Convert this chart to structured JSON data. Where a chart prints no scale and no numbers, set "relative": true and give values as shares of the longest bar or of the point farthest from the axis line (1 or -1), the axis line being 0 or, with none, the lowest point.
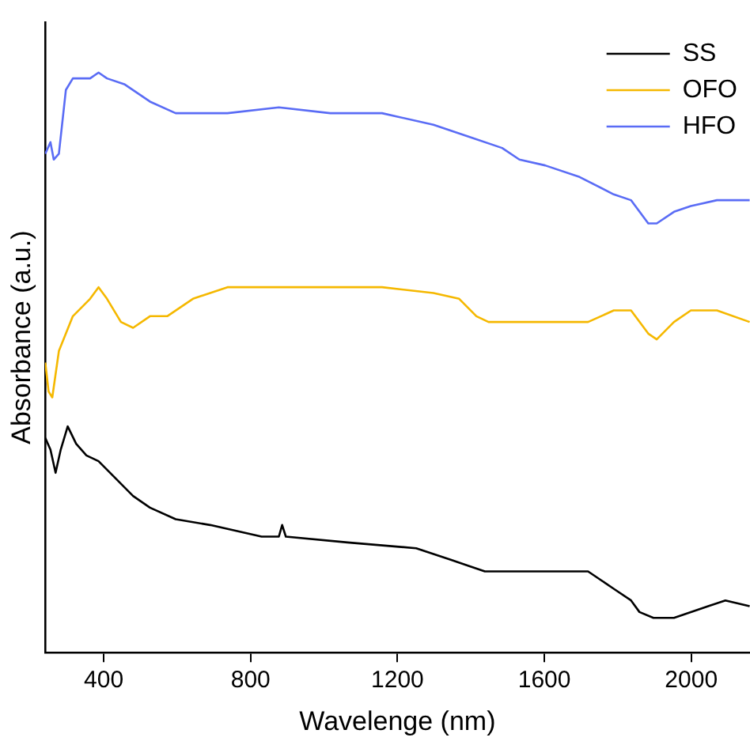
{
  "chart_data": {
    "type": "line",
    "xlabel": "Wavelenge (nm)",
    "ylabel": "Absorbance (a.u.)",
    "relative": true,
    "xlim": [
      240,
      2160
    ],
    "xticks": [
      400,
      800,
      1200,
      1600,
      2000
    ],
    "legend": "top right",
    "grid": false,
    "marker": "none",
    "line_style": "solid",
    "series": [
      {
        "name": "SS",
        "color": "#000000",
        "x": [
          241,
          255,
          269,
          283,
          302,
          325,
          353,
          386,
          433,
          480,
          526,
          596,
          690,
          830,
          877,
          886,
          896,
          1064,
          1251,
          1345,
          1392,
          1438,
          1532,
          1719,
          1789,
          1836,
          1859,
          1897,
          1953,
          2046,
          2093,
          2159
        ],
        "values": [
          0.37,
          0.35,
          0.31,
          0.35,
          0.39,
          0.36,
          0.34,
          0.33,
          0.3,
          0.27,
          0.25,
          0.23,
          0.22,
          0.2,
          0.2,
          0.22,
          0.2,
          0.19,
          0.18,
          0.16,
          0.15,
          0.14,
          0.14,
          0.14,
          0.11,
          0.09,
          0.07,
          0.06,
          0.06,
          0.08,
          0.09,
          0.08
        ]
      },
      {
        "name": "OFO",
        "color": "#f5b800",
        "x": [
          241,
          250,
          260,
          278,
          316,
          363,
          386,
          409,
          447,
          480,
          526,
          573,
          643,
          737,
          830,
          971,
          1158,
          1298,
          1368,
          1415,
          1448,
          1719,
          1789,
          1836,
          1883,
          1906,
          1953,
          1999,
          2070,
          2159
        ],
        "values": [
          0.5,
          0.45,
          0.44,
          0.52,
          0.58,
          0.61,
          0.63,
          0.61,
          0.57,
          0.56,
          0.58,
          0.58,
          0.61,
          0.63,
          0.63,
          0.63,
          0.63,
          0.62,
          0.61,
          0.58,
          0.57,
          0.57,
          0.59,
          0.59,
          0.55,
          0.54,
          0.57,
          0.59,
          0.59,
          0.57
        ]
      },
      {
        "name": "HFO",
        "color": "#5a6cf5",
        "x": [
          241,
          255,
          264,
          278,
          297,
          316,
          363,
          386,
          409,
          456,
          526,
          596,
          643,
          737,
          877,
          1017,
          1158,
          1298,
          1392,
          1485,
          1532,
          1602,
          1696,
          1789,
          1836,
          1883,
          1906,
          1953,
          1999,
          2070,
          2159
        ],
        "values": [
          0.86,
          0.88,
          0.85,
          0.86,
          0.97,
          0.99,
          0.99,
          1,
          0.99,
          0.98,
          0.95,
          0.93,
          0.93,
          0.93,
          0.94,
          0.93,
          0.93,
          0.91,
          0.89,
          0.87,
          0.85,
          0.84,
          0.82,
          0.79,
          0.78,
          0.74,
          0.74,
          0.76,
          0.77,
          0.78,
          0.78
        ]
      }
    ]
  }
}
